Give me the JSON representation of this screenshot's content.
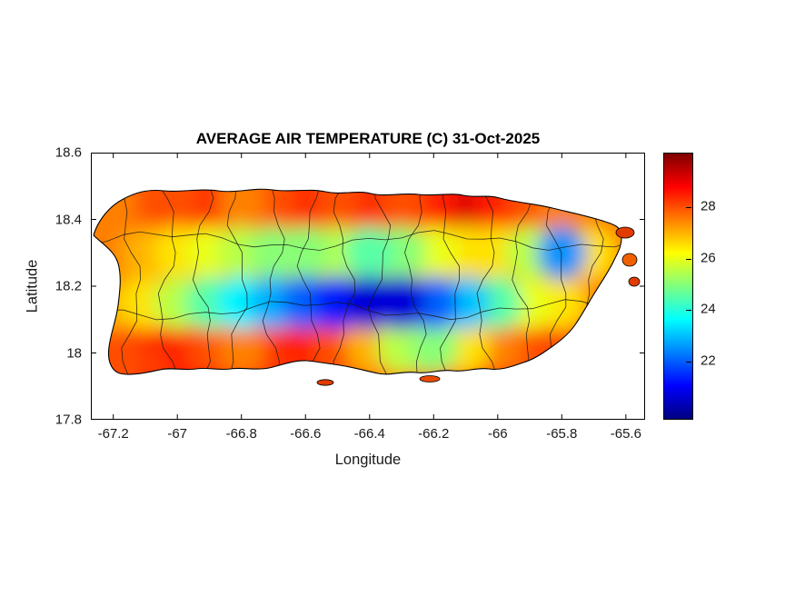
{
  "chart_data": {
    "type": "heatmap",
    "title": "AVERAGE AIR TEMPERATURE (C) 31-Oct-2025",
    "xlabel": "Longitude",
    "ylabel": "Latitude",
    "region": "Puerto Rico",
    "units": "C",
    "xlim": [
      -67.27,
      -65.54
    ],
    "ylim": [
      17.8,
      18.6
    ],
    "x_ticks": [
      -67.2,
      -67,
      -66.8,
      -66.6,
      -66.4,
      -66.2,
      -66,
      -65.8,
      -65.6
    ],
    "y_ticks": [
      18.6,
      18.4,
      18.2,
      18,
      17.8
    ],
    "colormap": "jet",
    "clim": [
      19.7,
      30.1
    ],
    "colorbar_ticks": [
      22,
      24,
      26,
      28
    ],
    "grid": {
      "lons": [
        -67.2,
        -67.1,
        -67.0,
        -66.9,
        -66.8,
        -66.7,
        -66.6,
        -66.5,
        -66.4,
        -66.3,
        -66.2,
        -66.1,
        -66.0,
        -65.9,
        -65.8,
        -65.7
      ],
      "lats": [
        18.45,
        18.3,
        18.15,
        18.02,
        17.95
      ],
      "values": [
        [
          27.5,
          28,
          28,
          28.5,
          27.5,
          28,
          28.5,
          28,
          28.5,
          28,
          28.5,
          29.2,
          28.5,
          28,
          27.5,
          null
        ],
        [
          27.5,
          27,
          26.5,
          26,
          25.5,
          25,
          25,
          25.5,
          24.5,
          25,
          26,
          26.5,
          26.5,
          25.5,
          22.5,
          26.5
        ],
        [
          27,
          26.5,
          25.5,
          24.5,
          23.5,
          22.8,
          22,
          21.3,
          20.6,
          20.6,
          22,
          23,
          24.5,
          26,
          26.5,
          27.5
        ],
        [
          28,
          28.5,
          28.5,
          28,
          27.5,
          28.5,
          28.5,
          28,
          27,
          25.5,
          25,
          26.5,
          27.5,
          28,
          28.2,
          null
        ],
        [
          28,
          28.2,
          28.5,
          28.5,
          28,
          28.3,
          28.5,
          28,
          27.8,
          27.5,
          28,
          28.2,
          28.3,
          null,
          null,
          null
        ]
      ]
    },
    "overlays": "municipality boundary outlines drawn in black over filled temperature contours"
  }
}
